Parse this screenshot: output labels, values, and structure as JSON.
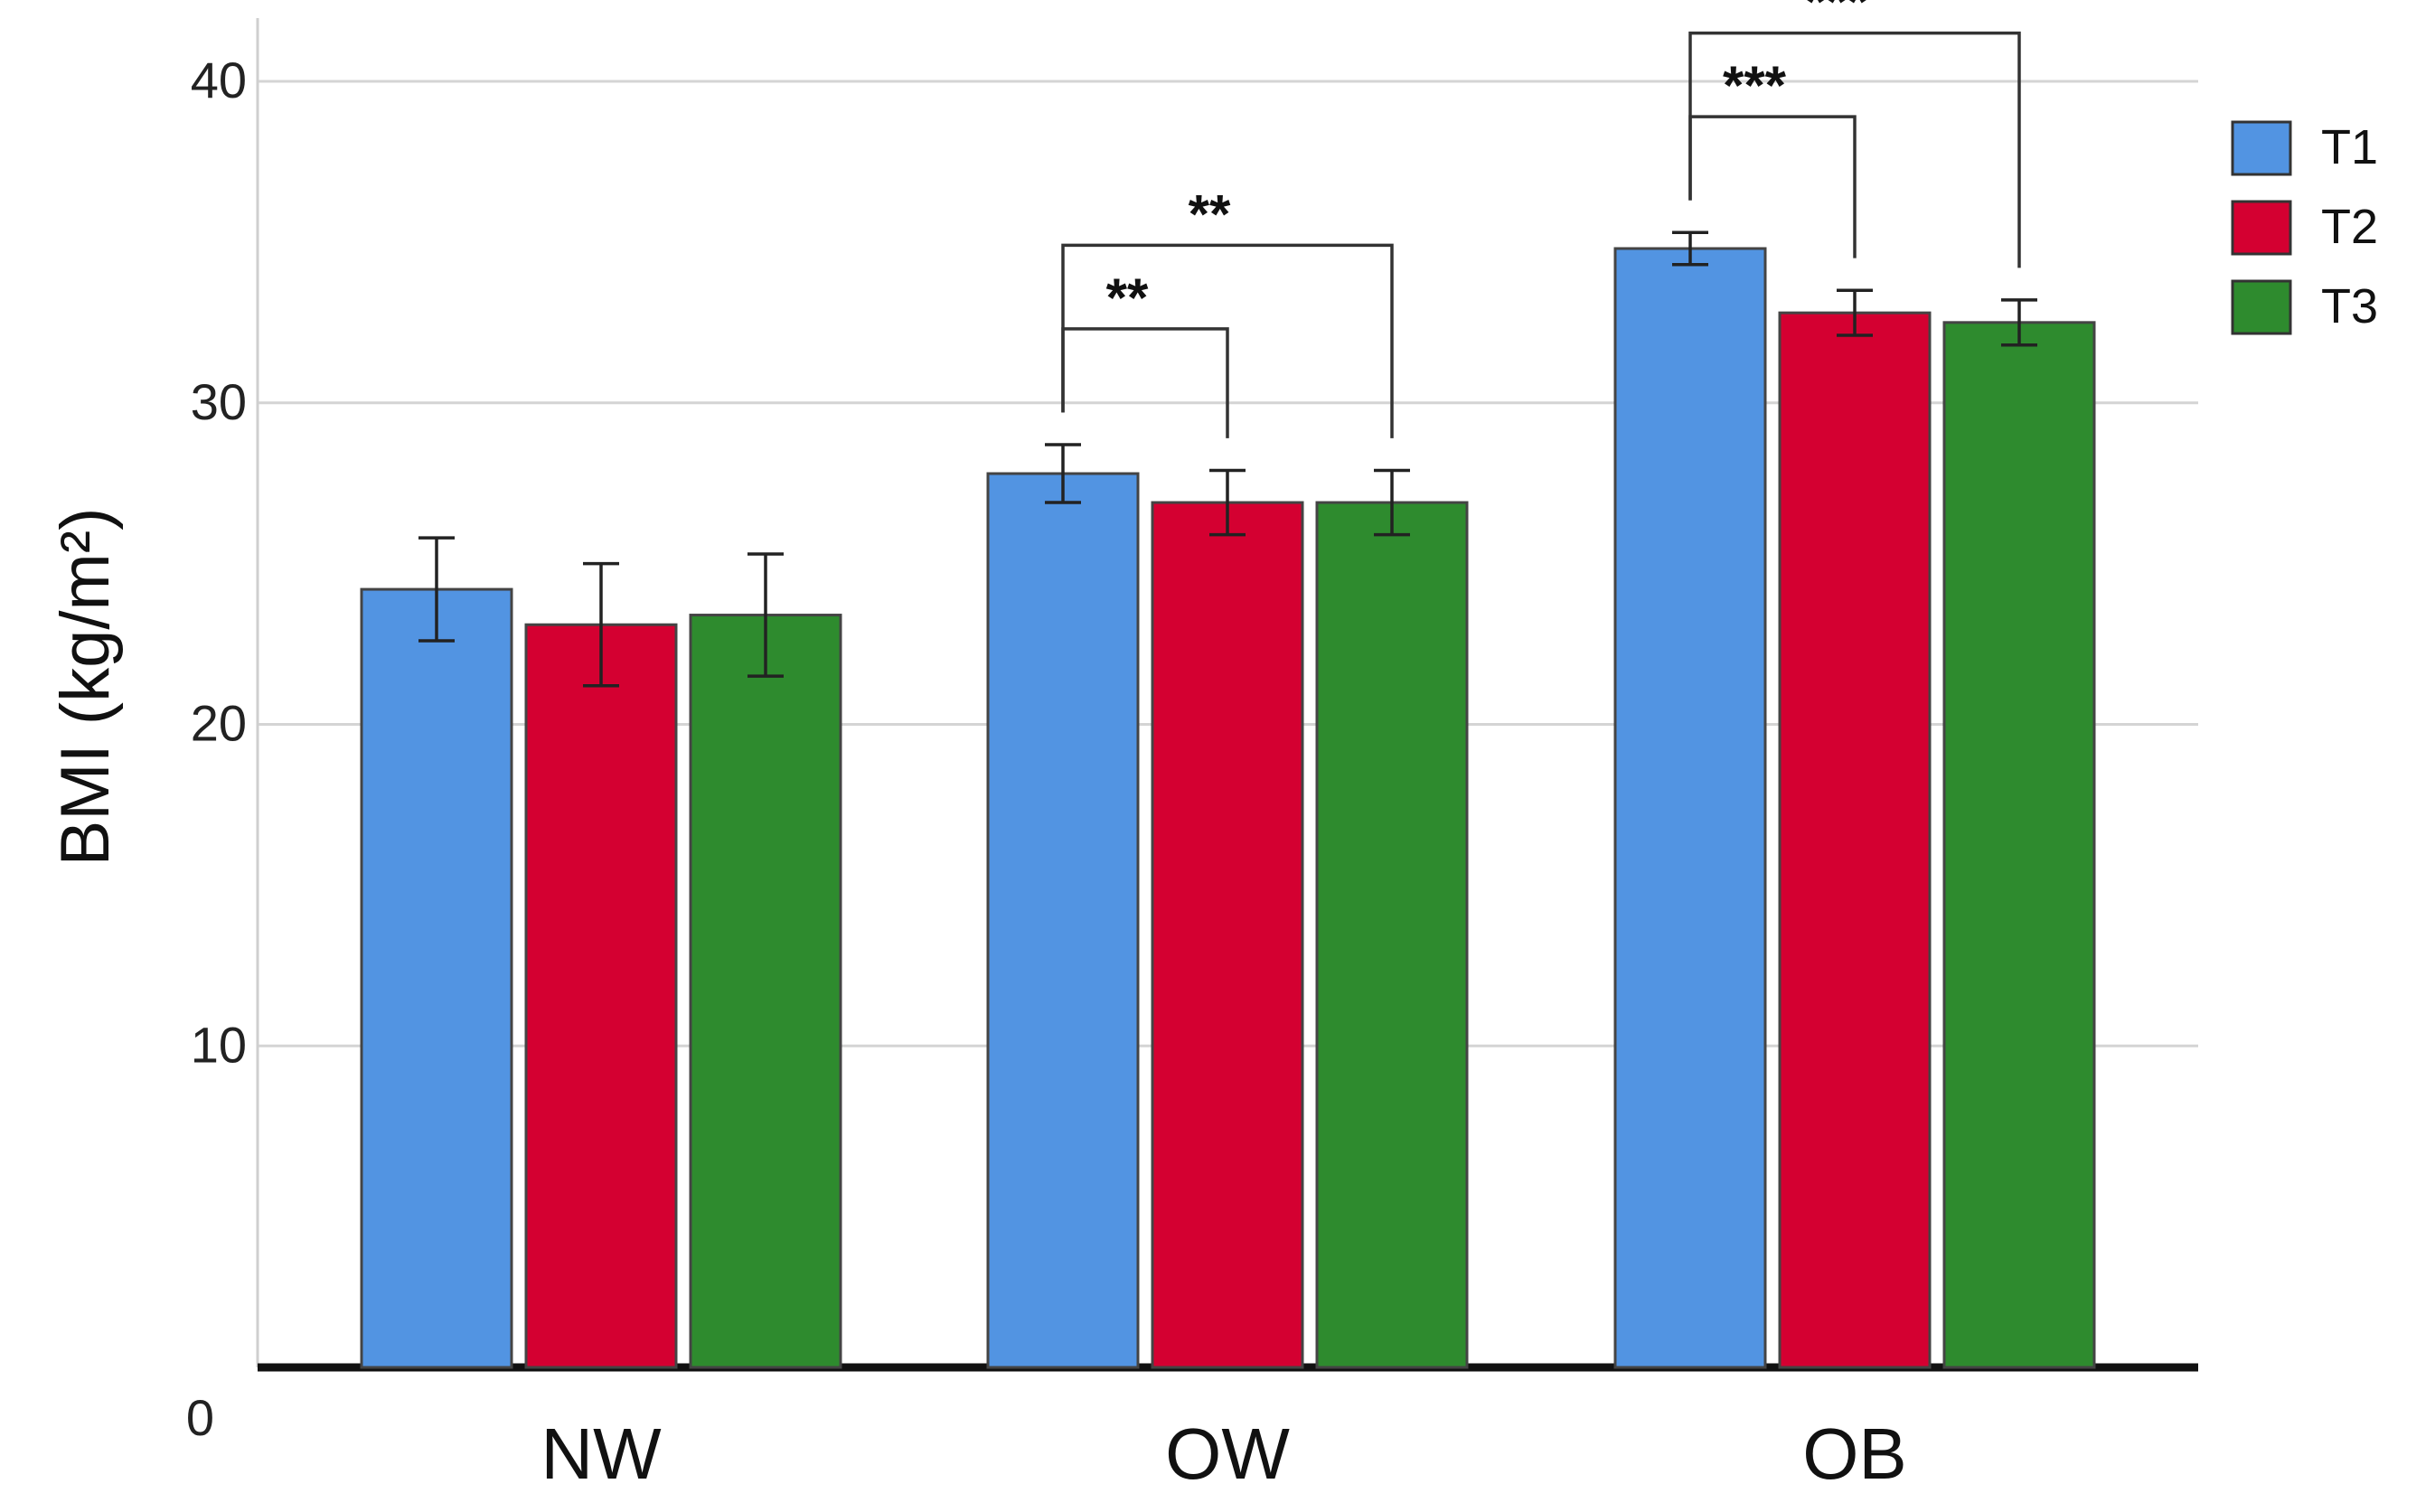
{
  "chart_data": {
    "type": "bar",
    "xlabel": "",
    "ylabel": "BMI (kg/m²)",
    "ylim": [
      0,
      40
    ],
    "yticks": [
      0,
      10,
      20,
      30,
      40
    ],
    "categories": [
      "NW",
      "OW",
      "OB"
    ],
    "grid": true,
    "legend_position": "top-right",
    "series": [
      {
        "name": "T1",
        "color": "#5294E2",
        "values": [
          24.2,
          27.8,
          34.8
        ],
        "errors": [
          1.6,
          0.9,
          0.5
        ]
      },
      {
        "name": "T2",
        "color": "#D40031",
        "values": [
          23.1,
          26.9,
          32.8
        ],
        "errors": [
          1.9,
          1.0,
          0.7
        ]
      },
      {
        "name": "T3",
        "color": "#2E8B2E",
        "values": [
          23.4,
          26.9,
          32.5
        ],
        "errors": [
          1.9,
          1.0,
          0.7
        ]
      }
    ],
    "significance": [
      {
        "category": "OW",
        "from": "T1",
        "to": "T2",
        "label": "**"
      },
      {
        "category": "OW",
        "from": "T1",
        "to": "T3",
        "label": "**"
      },
      {
        "category": "OB",
        "from": "T1",
        "to": "T2",
        "label": "***"
      },
      {
        "category": "OB",
        "from": "T1",
        "to": "T3",
        "label": "***"
      }
    ]
  }
}
